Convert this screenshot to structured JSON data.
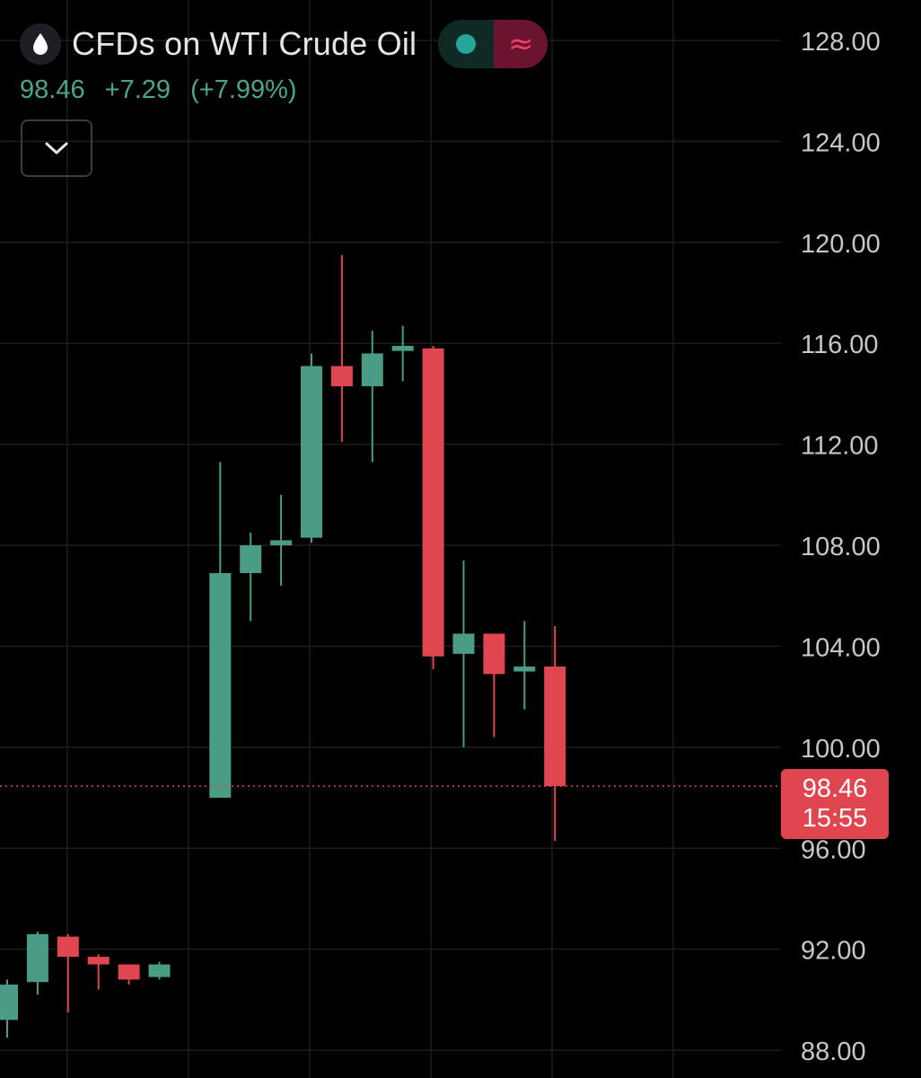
{
  "header": {
    "title": "CFDs on WTI Crude Oil",
    "symbol_icon": "drop-icon",
    "status_icon": "market-open-dot-icon",
    "delay_icon": "approx-icon",
    "delay_symbol": "≈"
  },
  "quote": {
    "last": "98.46",
    "change": "+7.29",
    "change_pct": "(+7.99%)"
  },
  "collapse_icon": "chevron-down-icon",
  "price_label": {
    "price": "98.46",
    "countdown": "15:55"
  },
  "colors": {
    "up": "#4a9c86",
    "down": "#e0464f",
    "grid": "#1c1c1c",
    "axis_text": "#c7c7c7"
  },
  "chart_data": {
    "type": "candlestick",
    "current_price": 98.46,
    "y_axis_ticks": [
      128,
      124,
      120,
      116,
      112,
      108,
      104,
      100,
      96,
      92,
      88
    ],
    "ylim": [
      86.9,
      129.6
    ],
    "candles": [
      {
        "open": 89.2,
        "high": 90.8,
        "low": 88.5,
        "close": 90.6
      },
      {
        "open": 90.7,
        "high": 92.7,
        "low": 90.2,
        "close": 92.6
      },
      {
        "open": 92.5,
        "high": 92.6,
        "low": 89.5,
        "close": 91.7
      },
      {
        "open": 91.7,
        "high": 91.8,
        "low": 90.4,
        "close": 91.4
      },
      {
        "open": 91.4,
        "high": 91.4,
        "low": 90.6,
        "close": 90.8
      },
      {
        "open": 90.9,
        "high": 91.5,
        "low": 90.8,
        "close": 91.4
      },
      null,
      {
        "open": 98.0,
        "high": 111.3,
        "low": 98.0,
        "close": 106.9
      },
      {
        "open": 106.9,
        "high": 108.5,
        "low": 105.0,
        "close": 108.0
      },
      {
        "open": 108.0,
        "high": 110.0,
        "low": 106.4,
        "close": 108.2
      },
      {
        "open": 108.3,
        "high": 115.6,
        "low": 108.1,
        "close": 115.1
      },
      {
        "open": 115.1,
        "high": 119.5,
        "low": 112.1,
        "close": 114.3
      },
      {
        "open": 114.3,
        "high": 116.5,
        "low": 111.3,
        "close": 115.6
      },
      {
        "open": 115.7,
        "high": 116.7,
        "low": 114.5,
        "close": 115.9
      },
      {
        "open": 115.8,
        "high": 115.9,
        "low": 103.1,
        "close": 103.6
      },
      {
        "open": 103.7,
        "high": 107.4,
        "low": 100.0,
        "close": 104.5
      },
      {
        "open": 104.5,
        "high": 104.5,
        "low": 100.4,
        "close": 102.9
      },
      {
        "open": 103.0,
        "high": 105.0,
        "low": 101.5,
        "close": 103.2
      },
      {
        "open": 103.2,
        "high": 104.8,
        "low": 96.3,
        "close": 98.46
      }
    ]
  }
}
